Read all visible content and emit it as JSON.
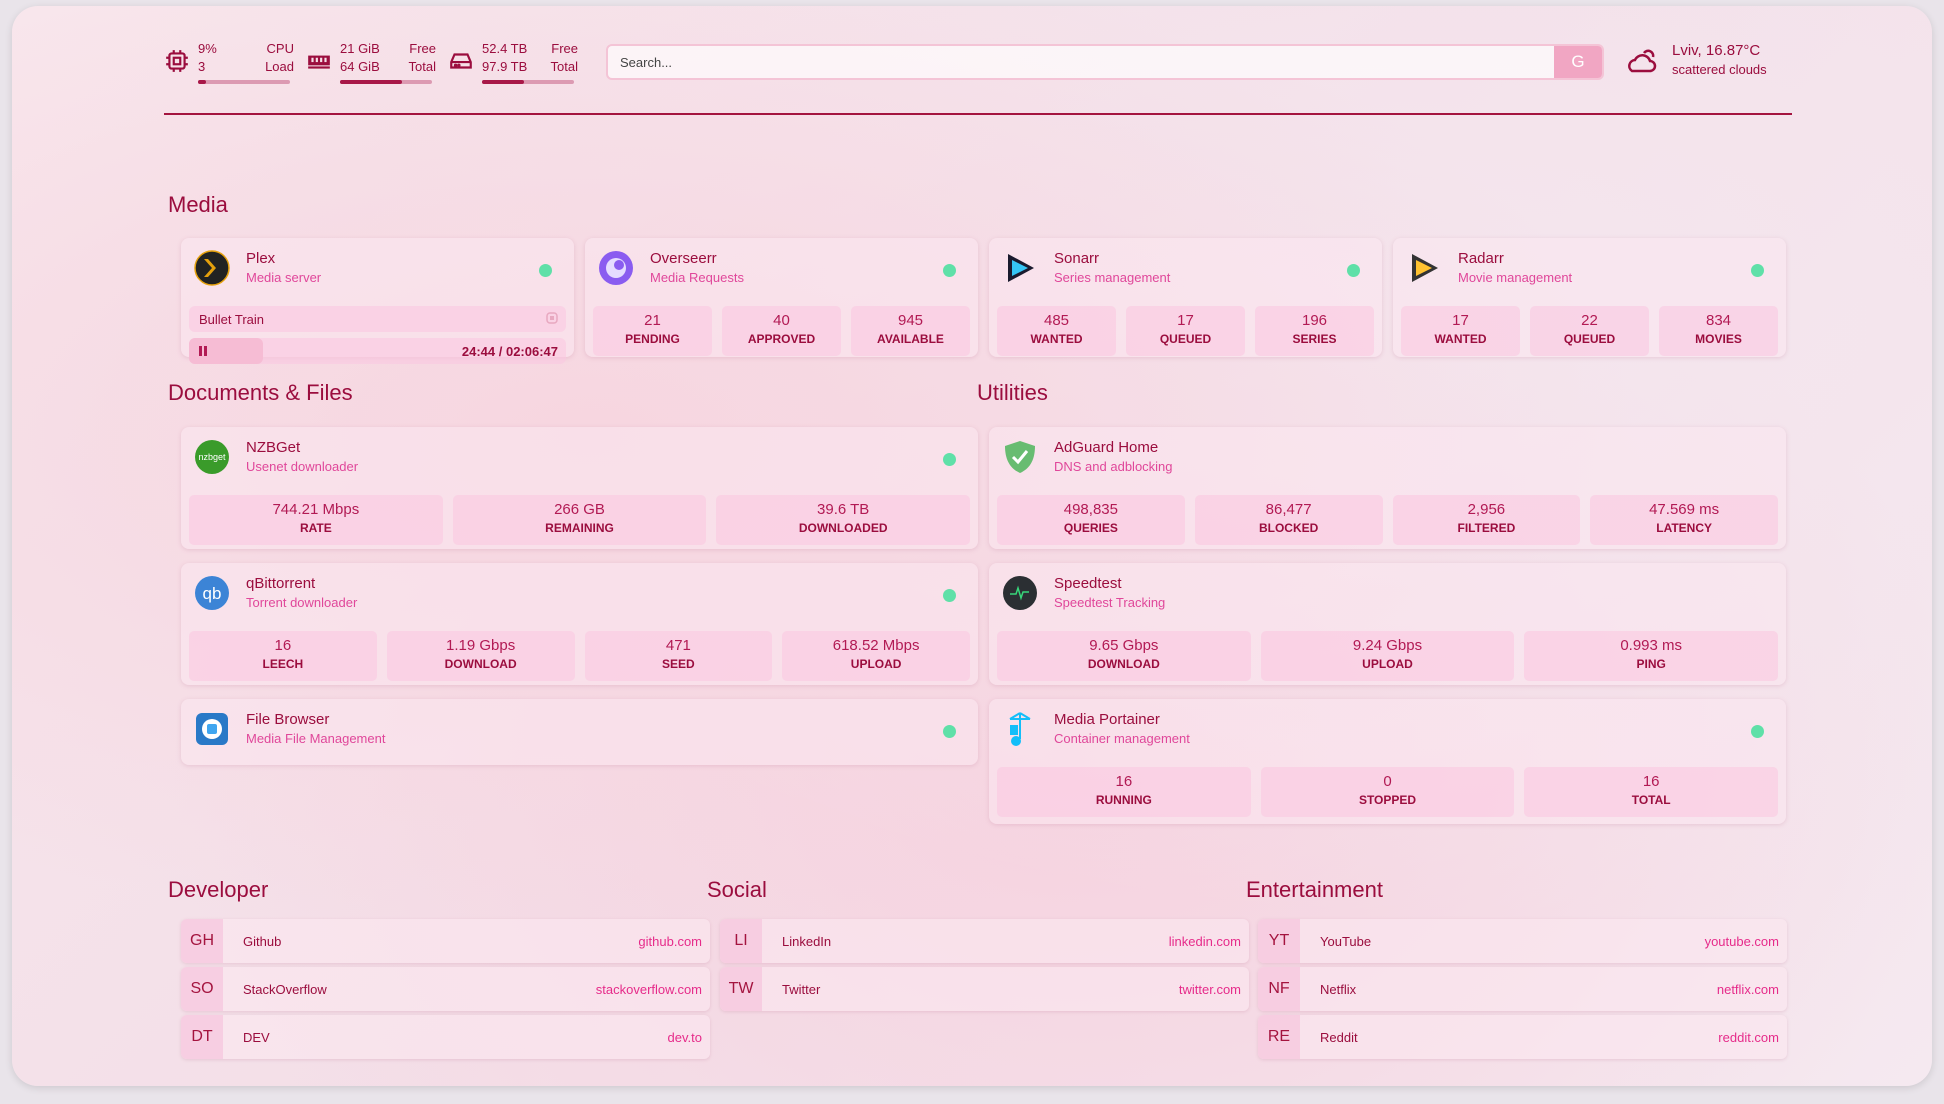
{
  "header": {
    "cpu": {
      "value": "9%",
      "sub": "3",
      "label1": "CPU",
      "label2": "Load",
      "fill": 0.09,
      "icon": "cpu-icon"
    },
    "memory": {
      "value": "21 GiB",
      "sub": "64 GiB",
      "label1": "Free",
      "label2": "Total",
      "fill": 0.67,
      "icon": "memory-icon"
    },
    "disk": {
      "value": "52.4 TB",
      "sub": "97.9 TB",
      "label1": "Free",
      "label2": "Total",
      "fill": 0.46,
      "icon": "disk-icon"
    },
    "search": {
      "placeholder": "Search...",
      "engine_button": "G"
    },
    "weather": {
      "location_temp": "Lviv, 16.87°C",
      "condition": "scattered clouds",
      "icon": "cloud-sun-icon"
    }
  },
  "sections": {
    "media": "Media",
    "documents": "Documents & Files",
    "utilities": "Utilities",
    "developer": "Developer",
    "social": "Social",
    "entertainment": "Entertainment"
  },
  "services": [
    {
      "name": "Plex",
      "desc": "Media server",
      "icon": "plex",
      "status": "online",
      "now_playing": {
        "title": "Bullet Train",
        "time": "24:44 / 02:06:47",
        "progress": 0.195
      }
    },
    {
      "name": "Overseerr",
      "desc": "Media Requests",
      "icon": "overseerr",
      "status": "online",
      "stats": [
        [
          "21",
          "PENDING"
        ],
        [
          "40",
          "APPROVED"
        ],
        [
          "945",
          "AVAILABLE"
        ]
      ]
    },
    {
      "name": "Sonarr",
      "desc": "Series management",
      "icon": "sonarr",
      "status": "online",
      "stats": [
        [
          "485",
          "WANTED"
        ],
        [
          "17",
          "QUEUED"
        ],
        [
          "196",
          "SERIES"
        ]
      ]
    },
    {
      "name": "Radarr",
      "desc": "Movie management",
      "icon": "radarr",
      "status": "online",
      "stats": [
        [
          "17",
          "WANTED"
        ],
        [
          "22",
          "QUEUED"
        ],
        [
          "834",
          "MOVIES"
        ]
      ]
    },
    {
      "name": "NZBGet",
      "desc": "Usenet downloader",
      "icon": "nzbget",
      "status": "online",
      "stats": [
        [
          "744.21 Mbps",
          "RATE"
        ],
        [
          "266 GB",
          "REMAINING"
        ],
        [
          "39.6 TB",
          "DOWNLOADED"
        ]
      ]
    },
    {
      "name": "qBittorrent",
      "desc": "Torrent downloader",
      "icon": "qbittorrent",
      "status": "online",
      "stats": [
        [
          "16",
          "LEECH"
        ],
        [
          "1.19 Gbps",
          "DOWNLOAD"
        ],
        [
          "471",
          "SEED"
        ],
        [
          "618.52 Mbps",
          "UPLOAD"
        ]
      ]
    },
    {
      "name": "File Browser",
      "desc": "Media File Management",
      "icon": "filebrowser",
      "status": "online"
    },
    {
      "name": "AdGuard Home",
      "desc": "DNS and adblocking",
      "icon": "adguard",
      "stats": [
        [
          "498,835",
          "QUERIES"
        ],
        [
          "86,477",
          "BLOCKED"
        ],
        [
          "2,956",
          "FILTERED"
        ],
        [
          "47.569 ms",
          "LATENCY"
        ]
      ]
    },
    {
      "name": "Speedtest",
      "desc": "Speedtest Tracking",
      "icon": "speedtest",
      "stats": [
        [
          "9.65 Gbps",
          "DOWNLOAD"
        ],
        [
          "9.24 Gbps",
          "UPLOAD"
        ],
        [
          "0.993 ms",
          "PING"
        ]
      ]
    },
    {
      "name": "Media Portainer",
      "desc": "Container management",
      "icon": "portainer",
      "status": "online",
      "stats": [
        [
          "16",
          "RUNNING"
        ],
        [
          "0",
          "STOPPED"
        ],
        [
          "16",
          "TOTAL"
        ]
      ]
    }
  ],
  "bookmarks": [
    [
      {
        "abbr": "GH",
        "name": "Github",
        "url": "github.com"
      },
      {
        "abbr": "SO",
        "name": "StackOverflow",
        "url": "stackoverflow.com"
      },
      {
        "abbr": "DT",
        "name": "DEV",
        "url": "dev.to"
      }
    ],
    [
      {
        "abbr": "LI",
        "name": "LinkedIn",
        "url": "linkedin.com"
      },
      {
        "abbr": "TW",
        "name": "Twitter",
        "url": "twitter.com"
      }
    ],
    [
      {
        "abbr": "YT",
        "name": "YouTube",
        "url": "youtube.com"
      },
      {
        "abbr": "NF",
        "name": "Netflix",
        "url": "netflix.com"
      },
      {
        "abbr": "RE",
        "name": "Reddit",
        "url": "reddit.com"
      }
    ]
  ],
  "colors": {
    "accent": "#9b0d3e",
    "subtitle": "#e0479a",
    "status_online": "#5fe0a8",
    "link": "#e62b8a"
  }
}
